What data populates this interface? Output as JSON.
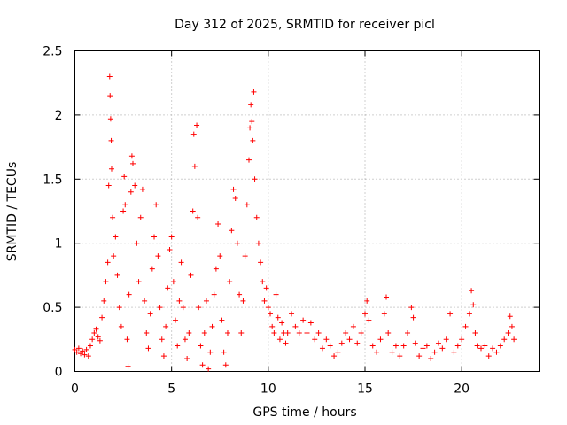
{
  "chart_data": {
    "type": "scatter",
    "title": "Day 312 of 2025, SRMTID for receiver picl",
    "xlabel": "GPS time / hours",
    "ylabel": "SRMTID / TECUs",
    "xlim": [
      0,
      24
    ],
    "ylim": [
      0,
      2.5
    ],
    "xticks": [
      0,
      5,
      10,
      15,
      20
    ],
    "xtick_labels": [
      "0",
      "5",
      "10",
      "15",
      "20"
    ],
    "yticks": [
      0,
      0.5,
      1,
      1.5,
      2,
      2.5
    ],
    "ytick_labels": [
      "0",
      "0.5",
      "1",
      "1.5",
      "2",
      "2.5"
    ],
    "grid": true,
    "marker": "+",
    "series_color": "#ff0000",
    "series": [
      {
        "name": "SRMTID",
        "points": [
          [
            0.0,
            0.17
          ],
          [
            0.1,
            0.15
          ],
          [
            0.2,
            0.18
          ],
          [
            0.3,
            0.14
          ],
          [
            0.4,
            0.16
          ],
          [
            0.5,
            0.13
          ],
          [
            0.6,
            0.17
          ],
          [
            0.7,
            0.12
          ],
          [
            0.8,
            0.2
          ],
          [
            0.9,
            0.25
          ],
          [
            1.0,
            0.3
          ],
          [
            1.1,
            0.33
          ],
          [
            1.2,
            0.27
          ],
          [
            1.3,
            0.24
          ],
          [
            1.4,
            0.42
          ],
          [
            1.5,
            0.55
          ],
          [
            1.6,
            0.7
          ],
          [
            1.7,
            0.85
          ],
          [
            1.75,
            1.45
          ],
          [
            1.8,
            2.3
          ],
          [
            1.82,
            2.15
          ],
          [
            1.85,
            1.97
          ],
          [
            1.88,
            1.8
          ],
          [
            1.9,
            1.58
          ],
          [
            1.95,
            1.2
          ],
          [
            2.0,
            0.9
          ],
          [
            2.1,
            1.05
          ],
          [
            2.2,
            0.75
          ],
          [
            2.3,
            0.5
          ],
          [
            2.4,
            0.35
          ],
          [
            2.5,
            1.25
          ],
          [
            2.55,
            1.52
          ],
          [
            2.6,
            1.3
          ],
          [
            2.7,
            0.25
          ],
          [
            2.75,
            0.04
          ],
          [
            2.8,
            0.6
          ],
          [
            2.9,
            1.4
          ],
          [
            2.95,
            1.68
          ],
          [
            3.0,
            1.62
          ],
          [
            3.1,
            1.45
          ],
          [
            3.2,
            1.0
          ],
          [
            3.3,
            0.7
          ],
          [
            3.4,
            1.2
          ],
          [
            3.5,
            1.42
          ],
          [
            3.6,
            0.55
          ],
          [
            3.7,
            0.3
          ],
          [
            3.8,
            0.18
          ],
          [
            3.9,
            0.45
          ],
          [
            4.0,
            0.8
          ],
          [
            4.1,
            1.05
          ],
          [
            4.2,
            1.3
          ],
          [
            4.3,
            0.9
          ],
          [
            4.4,
            0.5
          ],
          [
            4.5,
            0.25
          ],
          [
            4.6,
            0.12
          ],
          [
            4.7,
            0.35
          ],
          [
            4.8,
            0.65
          ],
          [
            4.9,
            0.95
          ],
          [
            5.0,
            1.05
          ],
          [
            5.1,
            0.7
          ],
          [
            5.2,
            0.4
          ],
          [
            5.3,
            0.2
          ],
          [
            5.4,
            0.55
          ],
          [
            5.5,
            0.85
          ],
          [
            5.6,
            0.5
          ],
          [
            5.7,
            0.25
          ],
          [
            5.8,
            0.1
          ],
          [
            5.9,
            0.3
          ],
          [
            6.0,
            0.75
          ],
          [
            6.1,
            1.25
          ],
          [
            6.15,
            1.85
          ],
          [
            6.2,
            1.6
          ],
          [
            6.3,
            1.92
          ],
          [
            6.35,
            1.2
          ],
          [
            6.4,
            0.5
          ],
          [
            6.5,
            0.2
          ],
          [
            6.6,
            0.05
          ],
          [
            6.7,
            0.3
          ],
          [
            6.8,
            0.55
          ],
          [
            6.9,
            0.02
          ],
          [
            7.0,
            0.15
          ],
          [
            7.1,
            0.35
          ],
          [
            7.2,
            0.6
          ],
          [
            7.3,
            0.8
          ],
          [
            7.4,
            1.15
          ],
          [
            7.5,
            0.9
          ],
          [
            7.6,
            0.4
          ],
          [
            7.7,
            0.15
          ],
          [
            7.8,
            0.05
          ],
          [
            7.9,
            0.3
          ],
          [
            8.0,
            0.7
          ],
          [
            8.1,
            1.1
          ],
          [
            8.2,
            1.42
          ],
          [
            8.3,
            1.35
          ],
          [
            8.4,
            1.0
          ],
          [
            8.5,
            0.6
          ],
          [
            8.6,
            0.3
          ],
          [
            8.7,
            0.55
          ],
          [
            8.8,
            0.9
          ],
          [
            8.9,
            1.3
          ],
          [
            9.0,
            1.65
          ],
          [
            9.05,
            1.9
          ],
          [
            9.1,
            2.08
          ],
          [
            9.15,
            1.95
          ],
          [
            9.2,
            1.8
          ],
          [
            9.25,
            2.18
          ],
          [
            9.3,
            1.5
          ],
          [
            9.4,
            1.2
          ],
          [
            9.5,
            1.0
          ],
          [
            9.6,
            0.85
          ],
          [
            9.7,
            0.7
          ],
          [
            9.8,
            0.55
          ],
          [
            9.9,
            0.65
          ],
          [
            10.0,
            0.5
          ],
          [
            10.1,
            0.45
          ],
          [
            10.2,
            0.35
          ],
          [
            10.3,
            0.3
          ],
          [
            10.4,
            0.6
          ],
          [
            10.5,
            0.42
          ],
          [
            10.6,
            0.25
          ],
          [
            10.7,
            0.38
          ],
          [
            10.8,
            0.3
          ],
          [
            10.9,
            0.22
          ],
          [
            11.0,
            0.3
          ],
          [
            11.2,
            0.45
          ],
          [
            11.4,
            0.35
          ],
          [
            11.6,
            0.3
          ],
          [
            11.8,
            0.4
          ],
          [
            12.0,
            0.3
          ],
          [
            12.2,
            0.38
          ],
          [
            12.4,
            0.25
          ],
          [
            12.6,
            0.3
          ],
          [
            12.8,
            0.18
          ],
          [
            13.0,
            0.25
          ],
          [
            13.2,
            0.2
          ],
          [
            13.4,
            0.12
          ],
          [
            13.6,
            0.15
          ],
          [
            13.8,
            0.22
          ],
          [
            14.0,
            0.3
          ],
          [
            14.2,
            0.25
          ],
          [
            14.4,
            0.35
          ],
          [
            14.6,
            0.22
          ],
          [
            14.8,
            0.3
          ],
          [
            15.0,
            0.45
          ],
          [
            15.1,
            0.55
          ],
          [
            15.2,
            0.4
          ],
          [
            15.4,
            0.2
          ],
          [
            15.6,
            0.15
          ],
          [
            15.8,
            0.25
          ],
          [
            16.0,
            0.45
          ],
          [
            16.1,
            0.58
          ],
          [
            16.2,
            0.3
          ],
          [
            16.4,
            0.15
          ],
          [
            16.6,
            0.2
          ],
          [
            16.8,
            0.12
          ],
          [
            17.0,
            0.2
          ],
          [
            17.2,
            0.3
          ],
          [
            17.4,
            0.5
          ],
          [
            17.5,
            0.42
          ],
          [
            17.6,
            0.22
          ],
          [
            17.8,
            0.12
          ],
          [
            18.0,
            0.18
          ],
          [
            18.2,
            0.2
          ],
          [
            18.4,
            0.1
          ],
          [
            18.6,
            0.15
          ],
          [
            18.8,
            0.22
          ],
          [
            19.0,
            0.18
          ],
          [
            19.2,
            0.25
          ],
          [
            19.4,
            0.45
          ],
          [
            19.6,
            0.15
          ],
          [
            19.8,
            0.2
          ],
          [
            20.0,
            0.25
          ],
          [
            20.2,
            0.35
          ],
          [
            20.4,
            0.45
          ],
          [
            20.5,
            0.63
          ],
          [
            20.6,
            0.52
          ],
          [
            20.7,
            0.3
          ],
          [
            20.8,
            0.2
          ],
          [
            21.0,
            0.18
          ],
          [
            21.2,
            0.2
          ],
          [
            21.4,
            0.12
          ],
          [
            21.6,
            0.18
          ],
          [
            21.8,
            0.15
          ],
          [
            22.0,
            0.2
          ],
          [
            22.2,
            0.25
          ],
          [
            22.4,
            0.3
          ],
          [
            22.5,
            0.43
          ],
          [
            22.6,
            0.35
          ],
          [
            22.7,
            0.25
          ]
        ]
      }
    ]
  }
}
